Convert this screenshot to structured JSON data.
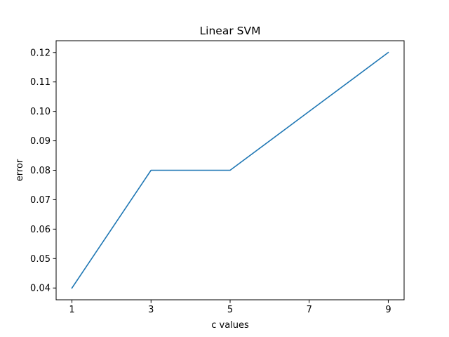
{
  "chart_data": {
    "type": "line",
    "title": "Linear SVM",
    "xlabel": "c values",
    "ylabel": "error",
    "x": [
      1,
      3,
      5,
      7,
      9
    ],
    "series": [
      {
        "values": [
          0.04,
          0.08,
          0.08,
          0.1,
          0.12
        ],
        "color": "#1f77b4"
      }
    ],
    "xticks": [
      "1",
      "3",
      "5",
      "7",
      "9"
    ],
    "xtick_values": [
      1,
      3,
      5,
      7,
      9
    ],
    "yticks": [
      "0.04",
      "0.05",
      "0.06",
      "0.07",
      "0.08",
      "0.09",
      "0.10",
      "0.11",
      "0.12"
    ],
    "ytick_values": [
      0.04,
      0.05,
      0.06,
      0.07,
      0.08,
      0.09,
      0.1,
      0.11,
      0.12
    ],
    "xlim": [
      0.6,
      9.4
    ],
    "ylim": [
      0.036,
      0.124
    ],
    "grid": false,
    "legend": "none"
  }
}
